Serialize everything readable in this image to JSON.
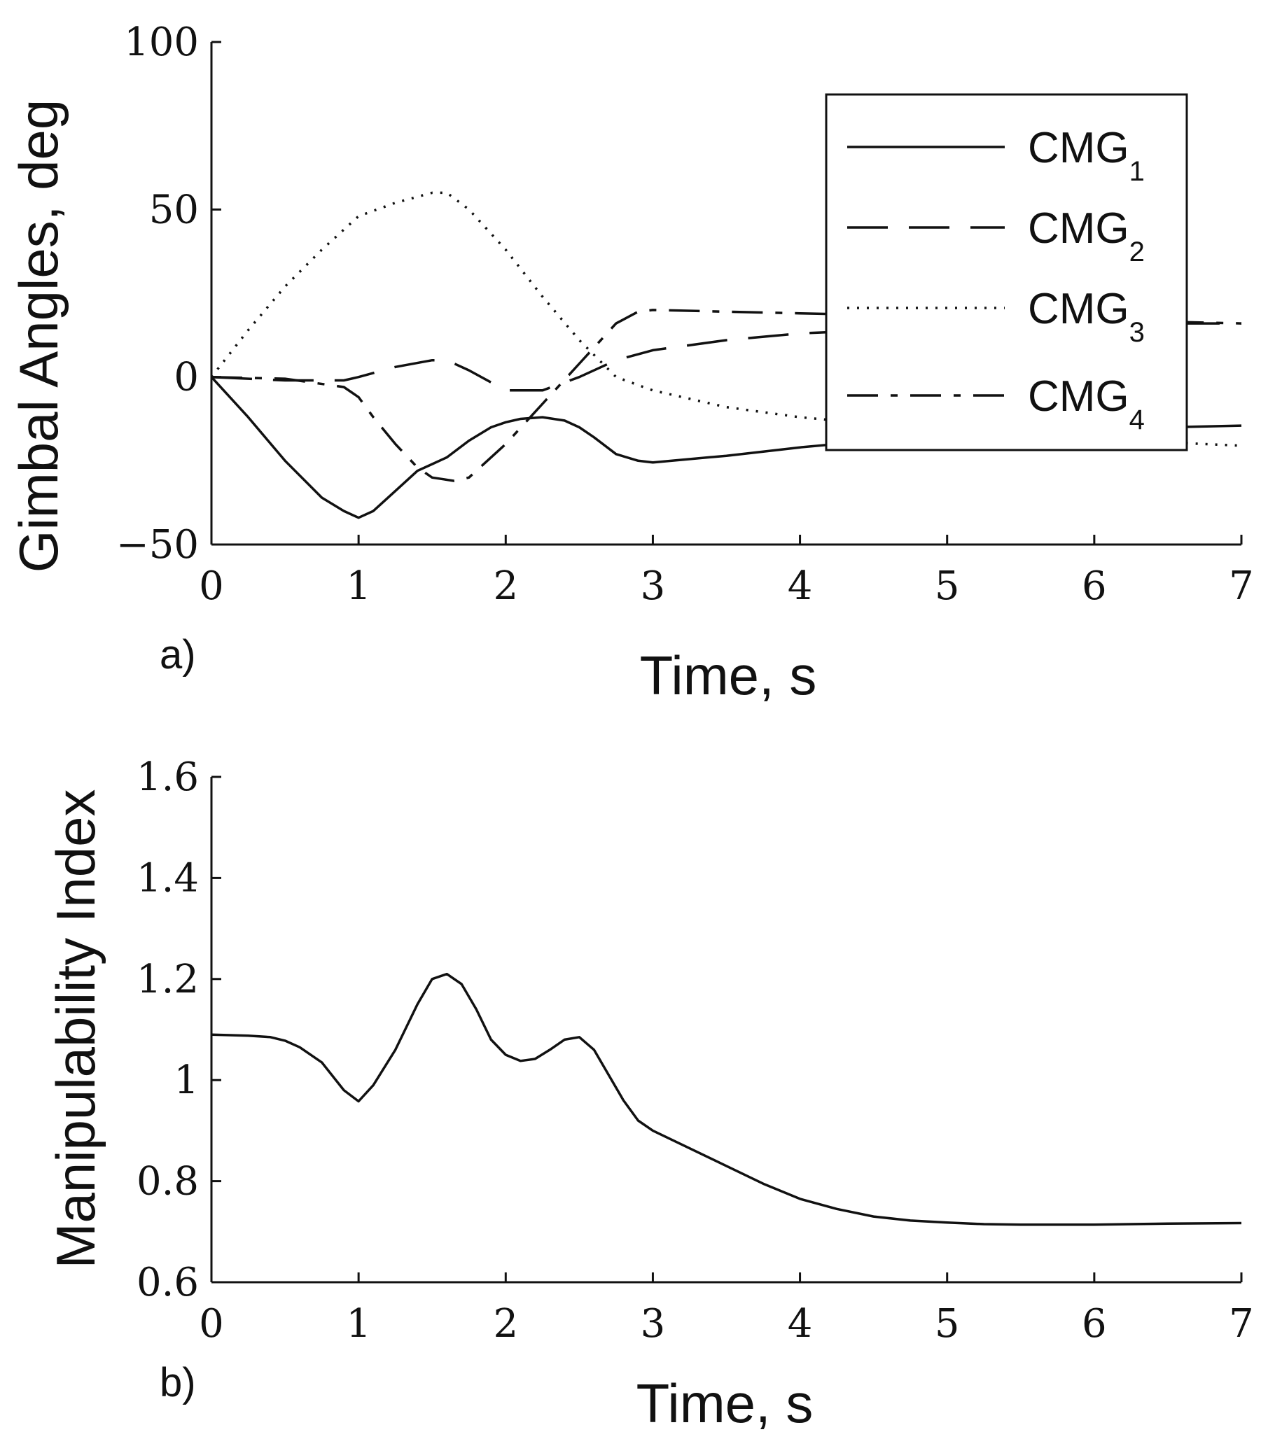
{
  "chart_data": [
    {
      "type": "line",
      "panel_label": "a)",
      "xlabel": "Time, s",
      "ylabel": "Gimbal Angles, deg",
      "xlim": [
        0,
        7
      ],
      "ylim": [
        -50,
        100
      ],
      "xticks": [
        "0",
        "1",
        "2",
        "3",
        "4",
        "5",
        "6",
        "7"
      ],
      "yticks": [
        "−50",
        "0",
        "50",
        "100"
      ],
      "ytick_values": [
        -50,
        0,
        50,
        100
      ],
      "legend_position": "top-right",
      "series": [
        {
          "name": "CMG",
          "subscript": "1",
          "dash": "solid",
          "x": [
            0,
            0.25,
            0.5,
            0.75,
            0.9,
            1.0,
            1.1,
            1.25,
            1.4,
            1.5,
            1.6,
            1.75,
            1.9,
            2.0,
            2.1,
            2.25,
            2.4,
            2.5,
            2.6,
            2.75,
            2.9,
            3.0,
            3.5,
            4.0,
            4.5,
            5.0,
            5.5,
            6.0,
            6.5,
            7.0
          ],
          "y": [
            0,
            -12,
            -25,
            -36,
            -40,
            -42,
            -40,
            -34,
            -28,
            -26,
            -24,
            -19,
            -15,
            -13.5,
            -12.5,
            -12,
            -13,
            -15,
            -18,
            -23,
            -25,
            -25.5,
            -23.5,
            -21,
            -19,
            -17.5,
            -16.5,
            -15.5,
            -15,
            -14.5
          ]
        },
        {
          "name": "CMG",
          "subscript": "2",
          "dash": "long-dash",
          "x": [
            0,
            0.5,
            0.9,
            1.0,
            1.25,
            1.5,
            1.6,
            1.75,
            2.0,
            2.25,
            2.5,
            2.75,
            3.0,
            3.5,
            4.0,
            4.5,
            5.0,
            5.5,
            6.0,
            6.5,
            7.0
          ],
          "y": [
            0,
            -1,
            -1,
            0,
            3,
            5,
            5,
            2,
            -4,
            -4,
            0,
            5,
            8,
            11,
            13,
            14,
            15,
            15.5,
            16,
            16,
            16
          ]
        },
        {
          "name": "CMG",
          "subscript": "3",
          "dash": "dotted",
          "x": [
            0,
            0.25,
            0.5,
            0.75,
            1.0,
            1.25,
            1.5,
            1.6,
            1.75,
            2.0,
            2.25,
            2.5,
            2.75,
            3.0,
            3.5,
            4.0,
            4.5,
            5.0,
            5.5,
            6.0,
            6.5,
            7.0
          ],
          "y": [
            0,
            14,
            27,
            38,
            48,
            52,
            55,
            55,
            50,
            38,
            24,
            11,
            0,
            -4,
            -9,
            -12,
            -14,
            -15.5,
            -17,
            -18.5,
            -19.5,
            -20.5
          ]
        },
        {
          "name": "CMG",
          "subscript": "4",
          "dash": "dash-dot",
          "x": [
            0,
            0.5,
            0.9,
            1.0,
            1.1,
            1.25,
            1.4,
            1.5,
            1.65,
            1.75,
            2.0,
            2.25,
            2.5,
            2.75,
            2.9,
            3.0,
            3.5,
            4.0,
            4.5,
            5.0,
            5.5,
            6.0,
            6.5,
            7.0
          ],
          "y": [
            0,
            -0.5,
            -3,
            -6,
            -12,
            -20,
            -27,
            -30,
            -31,
            -30,
            -20,
            -8,
            4,
            16,
            19.5,
            20,
            19.5,
            19,
            18.5,
            18,
            17.5,
            17,
            16.5,
            16
          ]
        }
      ]
    },
    {
      "type": "line",
      "panel_label": "b)",
      "xlabel": "Time, s",
      "ylabel": "Manipulability Index",
      "xlim": [
        0,
        7
      ],
      "ylim": [
        0.6,
        1.6
      ],
      "xticks": [
        "0",
        "1",
        "2",
        "3",
        "4",
        "5",
        "6",
        "7"
      ],
      "yticks": [
        "0.6",
        "0.8",
        "1",
        "1.2",
        "1.4",
        "1.6"
      ],
      "ytick_values": [
        0.6,
        0.8,
        1.0,
        1.2,
        1.4,
        1.6
      ],
      "series": [
        {
          "name": "Manipulability Index",
          "dash": "solid",
          "x": [
            0,
            0.25,
            0.4,
            0.5,
            0.6,
            0.75,
            0.9,
            1.0,
            1.1,
            1.25,
            1.4,
            1.5,
            1.6,
            1.7,
            1.8,
            1.9,
            2.0,
            2.1,
            2.2,
            2.3,
            2.4,
            2.5,
            2.6,
            2.7,
            2.8,
            2.9,
            3.0,
            3.25,
            3.5,
            3.75,
            4.0,
            4.25,
            4.5,
            4.75,
            5.0,
            5.25,
            5.5,
            5.75,
            6.0,
            6.25,
            6.5,
            7.0
          ],
          "y": [
            1.09,
            1.088,
            1.085,
            1.078,
            1.065,
            1.035,
            0.98,
            0.958,
            0.99,
            1.06,
            1.15,
            1.2,
            1.21,
            1.19,
            1.14,
            1.08,
            1.05,
            1.038,
            1.042,
            1.06,
            1.08,
            1.085,
            1.06,
            1.01,
            0.96,
            0.92,
            0.9,
            0.865,
            0.83,
            0.795,
            0.765,
            0.745,
            0.73,
            0.722,
            0.718,
            0.715,
            0.714,
            0.714,
            0.714,
            0.715,
            0.716,
            0.717
          ]
        }
      ]
    }
  ]
}
